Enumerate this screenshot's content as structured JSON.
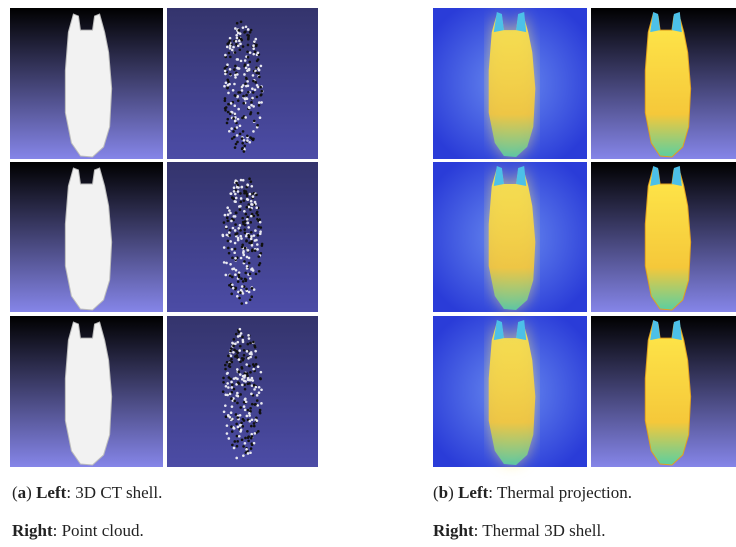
{
  "captions": [
    {
      "lines": [
        [
          {
            "text": "(",
            "bold": false
          },
          {
            "text": "a",
            "bold": true
          },
          {
            "text": ") ",
            "bold": false
          },
          {
            "text": "Left",
            "bold": true
          },
          {
            "text": ": 3D CT shell.",
            "bold": false
          }
        ],
        [
          {
            "text": "Right",
            "bold": true
          },
          {
            "text": ": Point cloud.",
            "bold": false
          }
        ]
      ]
    },
    {
      "lines": [
        [
          {
            "text": "(",
            "bold": false
          },
          {
            "text": "b",
            "bold": true
          },
          {
            "text": ") ",
            "bold": false
          },
          {
            "text": "Left",
            "bold": true
          },
          {
            "text": ": Thermal projection.",
            "bold": false
          }
        ],
        [
          {
            "text": "Right",
            "bold": true
          },
          {
            "text": ": Thermal 3D shell.",
            "bold": false
          }
        ]
      ]
    }
  ]
}
